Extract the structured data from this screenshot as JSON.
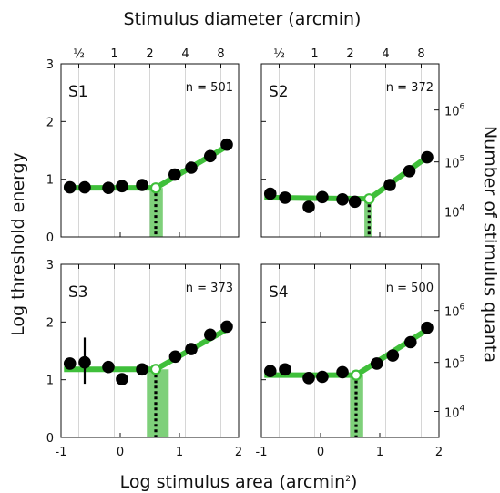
{
  "chart_data": {
    "type": "scatter",
    "title": "",
    "top_axis_title": "Stimulus diameter (arcmin)",
    "bottom_axis_title": "Log stimulus area (arcmin",
    "bottom_axis_title_sup": "2",
    "bottom_axis_title_end": ")",
    "left_axis_title": "Log threshold energy",
    "right_axis_title": "Number of stimulus quanta",
    "xlim": [
      -1,
      2
    ],
    "ylim": [
      0,
      3
    ],
    "x_ticks": [
      "-1",
      "0",
      "1",
      "2"
    ],
    "x_tick_values": [
      -1,
      0,
      1,
      2
    ],
    "y_ticks": [
      "0",
      "1",
      "2",
      "3"
    ],
    "y_tick_values": [
      0,
      1,
      2,
      3
    ],
    "top_ticks": [
      {
        "label": "½",
        "x": -0.7
      },
      {
        "label": "1",
        "x": -0.1
      },
      {
        "label": "2",
        "x": 0.5
      },
      {
        "label": "4",
        "x": 1.1
      },
      {
        "label": "8",
        "x": 1.7
      }
    ],
    "right_ticks": [
      {
        "base": "10",
        "exp": "4",
        "y": 0.45
      },
      {
        "base": "10",
        "exp": "5",
        "y": 1.3
      },
      {
        "base": "10",
        "exp": "6",
        "y": 2.2
      }
    ],
    "panels": [
      {
        "name": "S1",
        "n_label": "n = 501",
        "points": [
          {
            "x": -0.85,
            "y": 0.86
          },
          {
            "x": -0.6,
            "y": 0.86
          },
          {
            "x": -0.2,
            "y": 0.85
          },
          {
            "x": 0.03,
            "y": 0.88
          },
          {
            "x": 0.37,
            "y": 0.9
          },
          {
            "x": 0.92,
            "y": 1.08
          },
          {
            "x": 1.2,
            "y": 1.2
          },
          {
            "x": 1.52,
            "y": 1.4
          },
          {
            "x": 1.8,
            "y": 1.6
          }
        ],
        "fit": [
          [
            -0.95,
            0.85
          ],
          [
            0.6,
            0.85
          ],
          [
            1.85,
            1.6
          ]
        ],
        "corner": {
          "x": 0.6,
          "y": 0.85
        },
        "ci": [
          0.5,
          0.72
        ]
      },
      {
        "name": "S2",
        "n_label": "n = 372",
        "points": [
          {
            "x": -0.85,
            "y": 0.75
          },
          {
            "x": -0.6,
            "y": 0.68
          },
          {
            "x": -0.2,
            "y": 0.52
          },
          {
            "x": 0.03,
            "y": 0.69
          },
          {
            "x": 0.37,
            "y": 0.65
          },
          {
            "x": 0.58,
            "y": 0.61
          },
          {
            "x": 1.17,
            "y": 0.9
          },
          {
            "x": 1.5,
            "y": 1.14
          },
          {
            "x": 1.8,
            "y": 1.38
          }
        ],
        "fit": [
          [
            -0.95,
            0.68
          ],
          [
            0.82,
            0.66
          ],
          [
            1.85,
            1.42
          ]
        ],
        "corner": {
          "x": 0.82,
          "y": 0.66
        },
        "ci": [
          0.74,
          0.86
        ]
      },
      {
        "name": "S3",
        "n_label": "n = 373",
        "points": [
          {
            "x": -0.85,
            "y": 1.28
          },
          {
            "x": -0.6,
            "y": 1.3,
            "err": [
              0.93,
              1.73
            ]
          },
          {
            "x": -0.2,
            "y": 1.22
          },
          {
            "x": 0.03,
            "y": 1.01
          },
          {
            "x": 0.37,
            "y": 1.18
          },
          {
            "x": 0.93,
            "y": 1.4
          },
          {
            "x": 1.2,
            "y": 1.53
          },
          {
            "x": 1.52,
            "y": 1.78
          },
          {
            "x": 1.8,
            "y": 1.92
          }
        ],
        "fit": [
          [
            -0.95,
            1.18
          ],
          [
            0.6,
            1.18
          ],
          [
            1.85,
            1.9
          ]
        ],
        "corner": {
          "x": 0.6,
          "y": 1.18
        },
        "ci": [
          0.45,
          0.82
        ]
      },
      {
        "name": "S4",
        "n_label": "n = 500",
        "points": [
          {
            "x": -0.85,
            "y": 1.15
          },
          {
            "x": -0.6,
            "y": 1.18
          },
          {
            "x": -0.2,
            "y": 1.03
          },
          {
            "x": 0.03,
            "y": 1.05
          },
          {
            "x": 0.37,
            "y": 1.13
          },
          {
            "x": 0.95,
            "y": 1.28
          },
          {
            "x": 1.22,
            "y": 1.42
          },
          {
            "x": 1.52,
            "y": 1.65
          },
          {
            "x": 1.8,
            "y": 1.9
          }
        ],
        "fit": [
          [
            -0.95,
            1.08
          ],
          [
            0.6,
            1.08
          ],
          [
            1.85,
            1.9
          ]
        ],
        "corner": {
          "x": 0.6,
          "y": 1.08
        },
        "ci": [
          0.5,
          0.72
        ]
      }
    ]
  }
}
